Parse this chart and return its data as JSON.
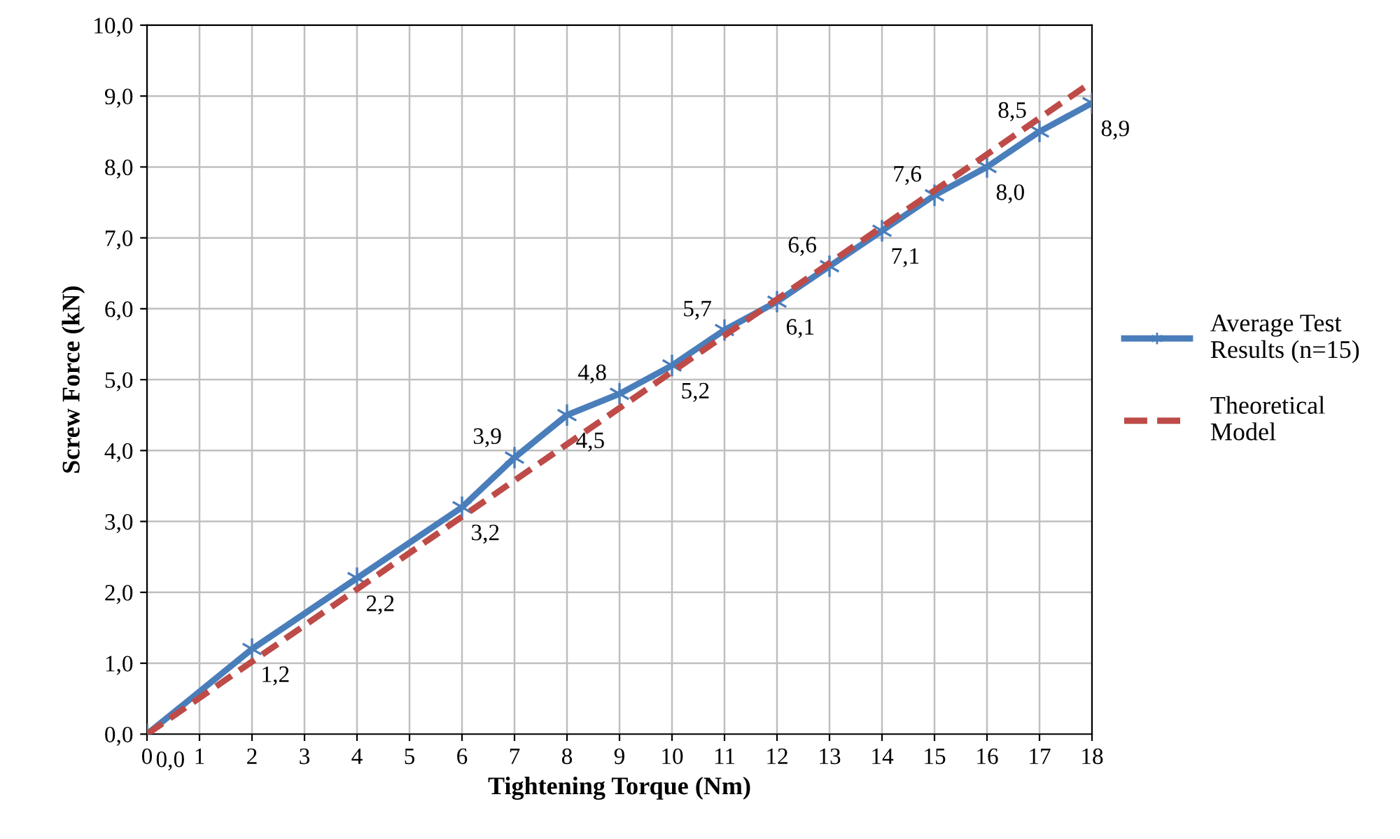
{
  "chart_data": {
    "type": "line",
    "xlabel": "Tightening Torque (Nm)",
    "ylabel": "Screw Force (kN)",
    "series": [
      {
        "name": "Average Test Results (n=15)",
        "color": "#4a7ebb",
        "marker": "cross",
        "line_style": "solid",
        "x": [
          0,
          2,
          4,
          6,
          7,
          8,
          9,
          10,
          11,
          12,
          13,
          14,
          15,
          16,
          17,
          18
        ],
        "values": [
          0.0,
          1.2,
          2.2,
          3.2,
          3.9,
          4.5,
          4.8,
          5.2,
          5.7,
          6.1,
          6.6,
          7.1,
          7.6,
          8.0,
          8.5,
          8.9
        ],
        "value_labels": [
          "0,0",
          "1,2",
          "2,2",
          "3,2",
          "3,9",
          "4,5",
          "4,8",
          "5,2",
          "5,7",
          "6,1",
          "6,6",
          "7,1",
          "7,6",
          "8,0",
          "8,5",
          "8,9"
        ]
      },
      {
        "name": "Theoretical Model",
        "color": "#be4b48",
        "marker": "none",
        "line_style": "dashed",
        "x": [
          0,
          18
        ],
        "values": [
          0.0,
          9.2
        ]
      }
    ],
    "xlim": [
      0,
      18
    ],
    "xticks": [
      0,
      1,
      2,
      3,
      4,
      5,
      6,
      7,
      8,
      9,
      10,
      11,
      12,
      13,
      14,
      15,
      16,
      17,
      18
    ],
    "ylim": [
      0,
      10
    ],
    "yticks": [
      {
        "value": 0,
        "label": "0,0"
      },
      {
        "value": 1,
        "label": "1,0"
      },
      {
        "value": 2,
        "label": "2,0"
      },
      {
        "value": 3,
        "label": "3,0"
      },
      {
        "value": 4,
        "label": "4,0"
      },
      {
        "value": 5,
        "label": "5,0"
      },
      {
        "value": 6,
        "label": "6,0"
      },
      {
        "value": 7,
        "label": "7,0"
      },
      {
        "value": 8,
        "label": "8,0"
      },
      {
        "value": 9,
        "label": "9,0"
      },
      {
        "value": 10,
        "label": "10,0"
      }
    ],
    "grid": true,
    "legend": "right"
  }
}
